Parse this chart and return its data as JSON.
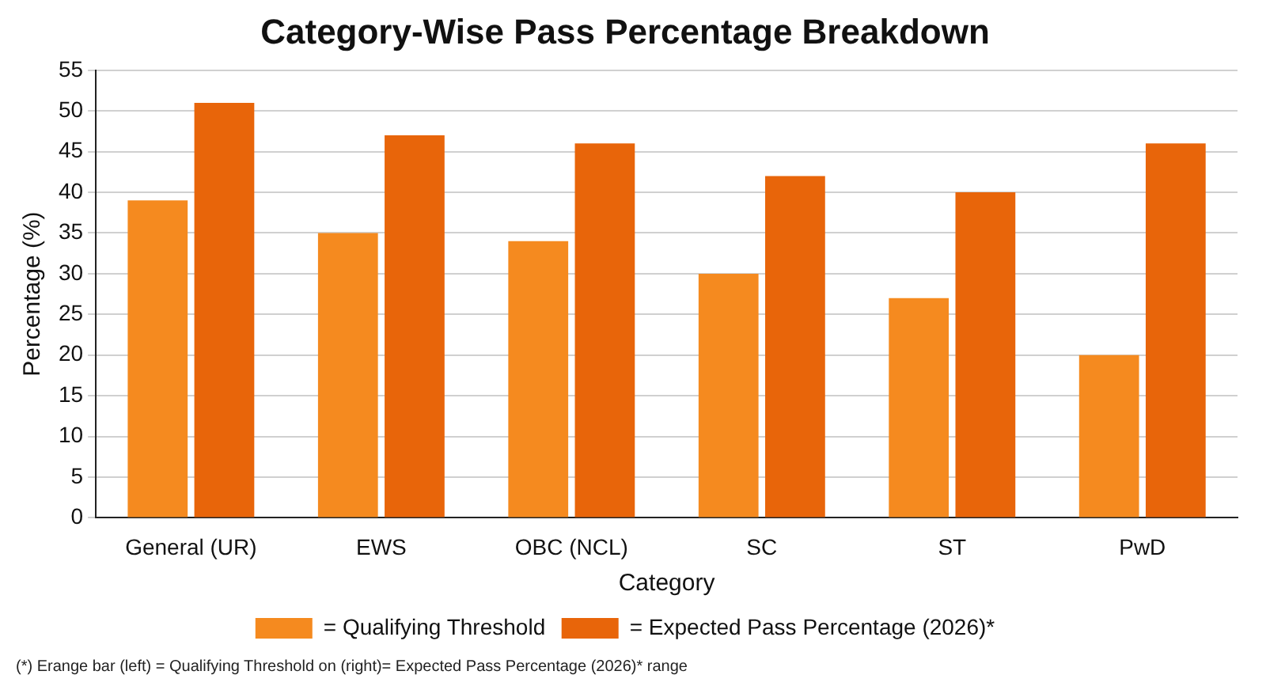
{
  "chart_data": {
    "type": "bar",
    "title": "Category-Wise Pass Percentage Breakdown",
    "xlabel": "Category",
    "ylabel": "Percentage (%)",
    "categories": [
      "General (UR)",
      "EWS",
      "OBC (NCL)",
      "SC",
      "ST",
      "PwD"
    ],
    "series": [
      {
        "name": "= Qualifying Threshold",
        "color": "#f58a1f",
        "values": [
          39,
          35,
          34,
          30,
          27,
          20
        ]
      },
      {
        "name": "= Expected Pass Percentage (2026)*",
        "color": "#e8650a",
        "values": [
          51,
          47,
          46,
          42,
          40,
          46
        ]
      }
    ],
    "ylim": [
      0,
      55
    ],
    "yticks": [
      0,
      5,
      10,
      15,
      20,
      25,
      30,
      35,
      40,
      45,
      50,
      55
    ],
    "grid": "y",
    "legend": "bottom",
    "annotations": [
      "(*) Erange bar (left) = Qualifying Threshold on (right)= Expected Pass Percentage (2026)* range"
    ]
  }
}
